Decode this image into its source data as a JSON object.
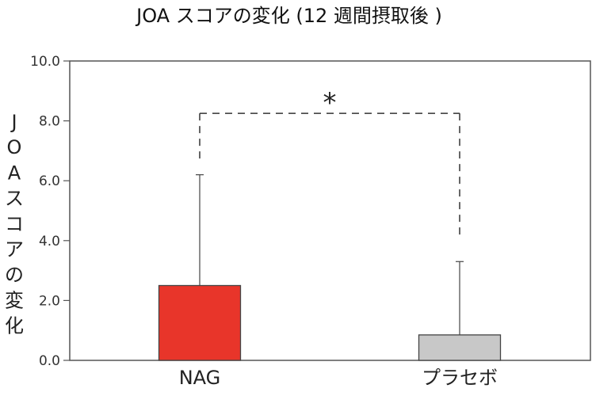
{
  "chart_data": {
    "type": "bar",
    "title": "JOA スコアの変化 (12 週間摂取後 )",
    "ylabel": "JOAスコアの変化",
    "xlabel": "",
    "categories": [
      "NAG",
      "プラセボ"
    ],
    "values": [
      2.5,
      0.85
    ],
    "error_upper": [
      6.2,
      3.3
    ],
    "ylim": [
      0,
      10
    ],
    "yticks": [
      "0.0",
      "2.0",
      "4.0",
      "6.0",
      "8.0",
      "10.0"
    ],
    "colors": [
      "#e8352a",
      "#c8c8c8"
    ],
    "grid": false,
    "significance": {
      "label": "*",
      "level": 8.25,
      "between": [
        "NAG",
        "プラセボ"
      ]
    }
  }
}
